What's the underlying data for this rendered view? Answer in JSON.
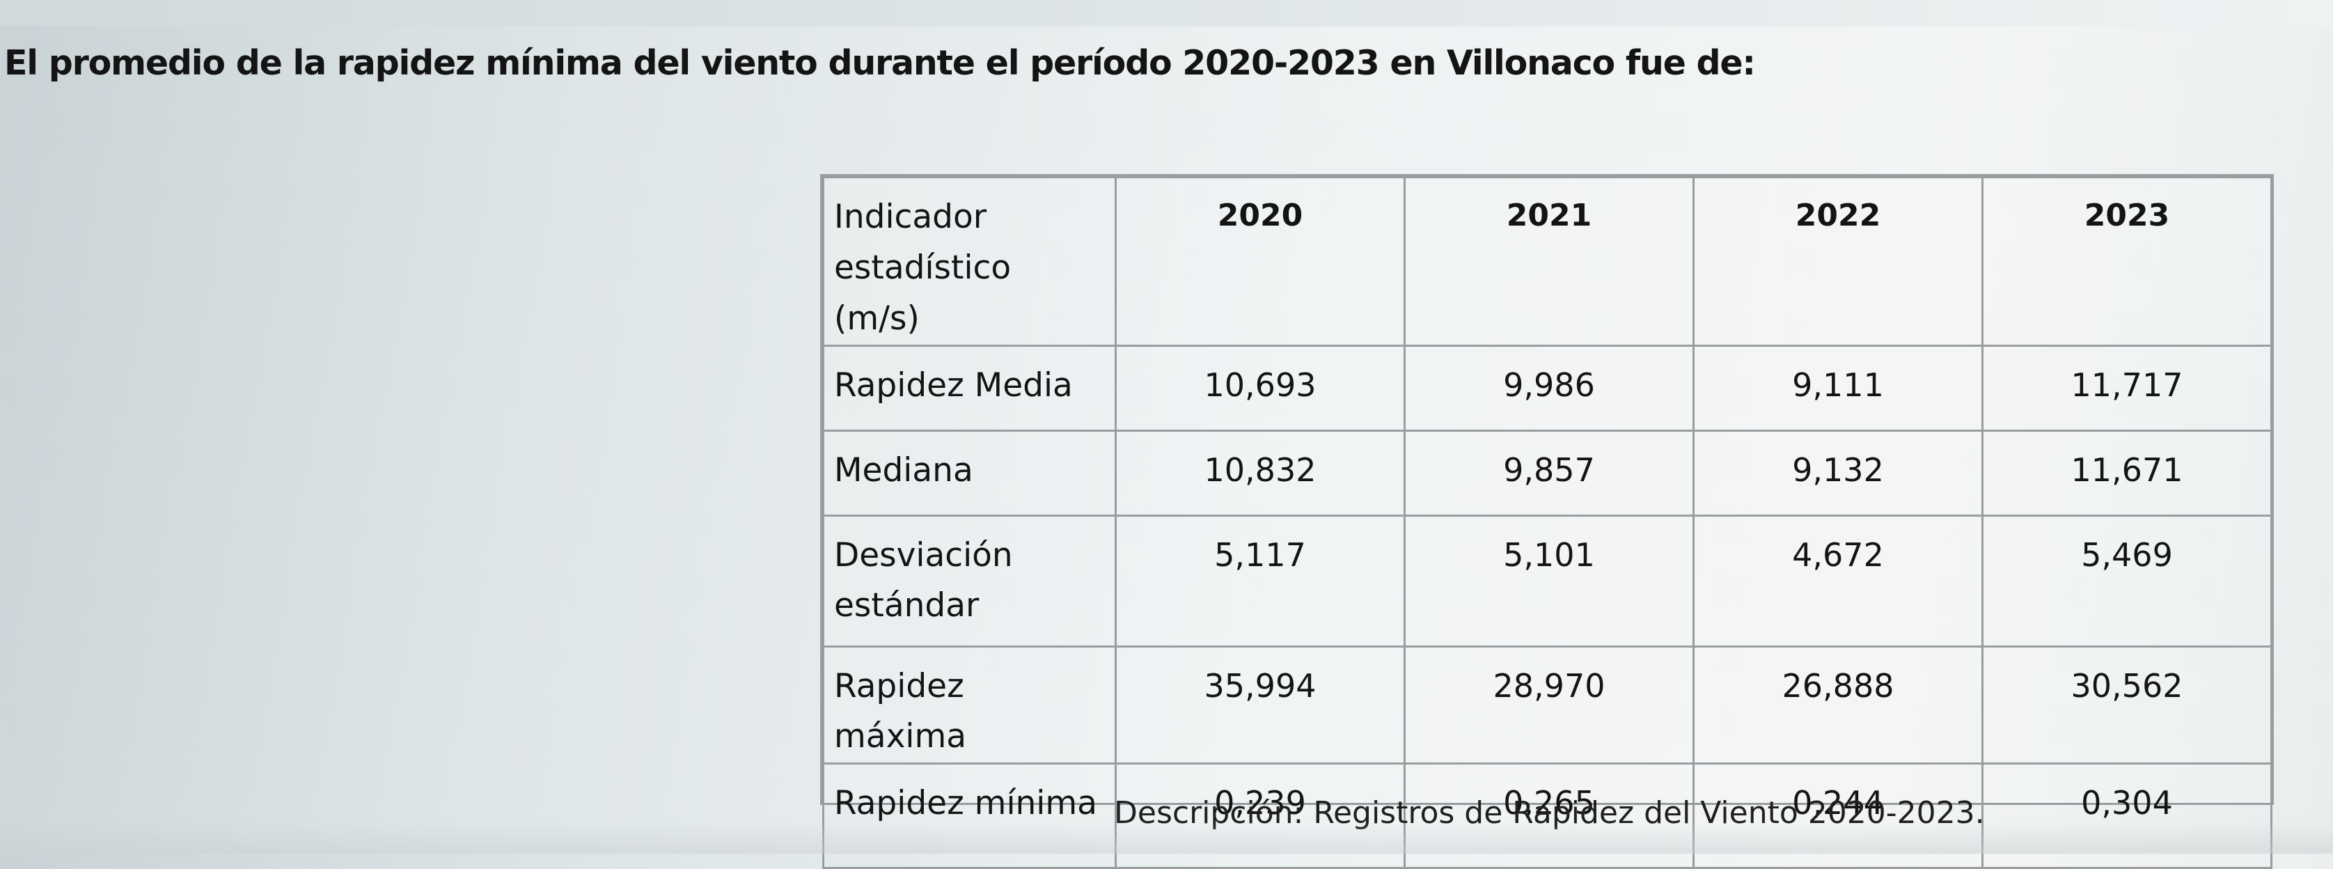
{
  "question": "El promedio de la rapidez mínima del viento durante el período 2020-2023 en Villonaco fue de:",
  "table": {
    "header": {
      "indicator": "Indicador estadístico (m/s)",
      "years": [
        "2020",
        "2021",
        "2022",
        "2023"
      ]
    },
    "rows": [
      {
        "label": "Rapidez Media",
        "values": [
          "10,693",
          "9,986",
          "9,111",
          "11,717"
        ]
      },
      {
        "label": "Mediana",
        "values": [
          "10,832",
          "9,857",
          "9,132",
          "11,671"
        ]
      },
      {
        "label": "Desviación estándar",
        "values": [
          "5,117",
          "5,101",
          "4,672",
          "5,469"
        ]
      },
      {
        "label": "Rapidez máxima",
        "values": [
          "35,994",
          "28,970",
          "26,888",
          "30,562"
        ]
      },
      {
        "label": "Rapidez mínima",
        "values": [
          "0,239",
          "0,265",
          "0,244",
          "0,304"
        ]
      }
    ]
  },
  "caption": "Descripción: Registros de Rapidez del Viento 2020-2023."
}
